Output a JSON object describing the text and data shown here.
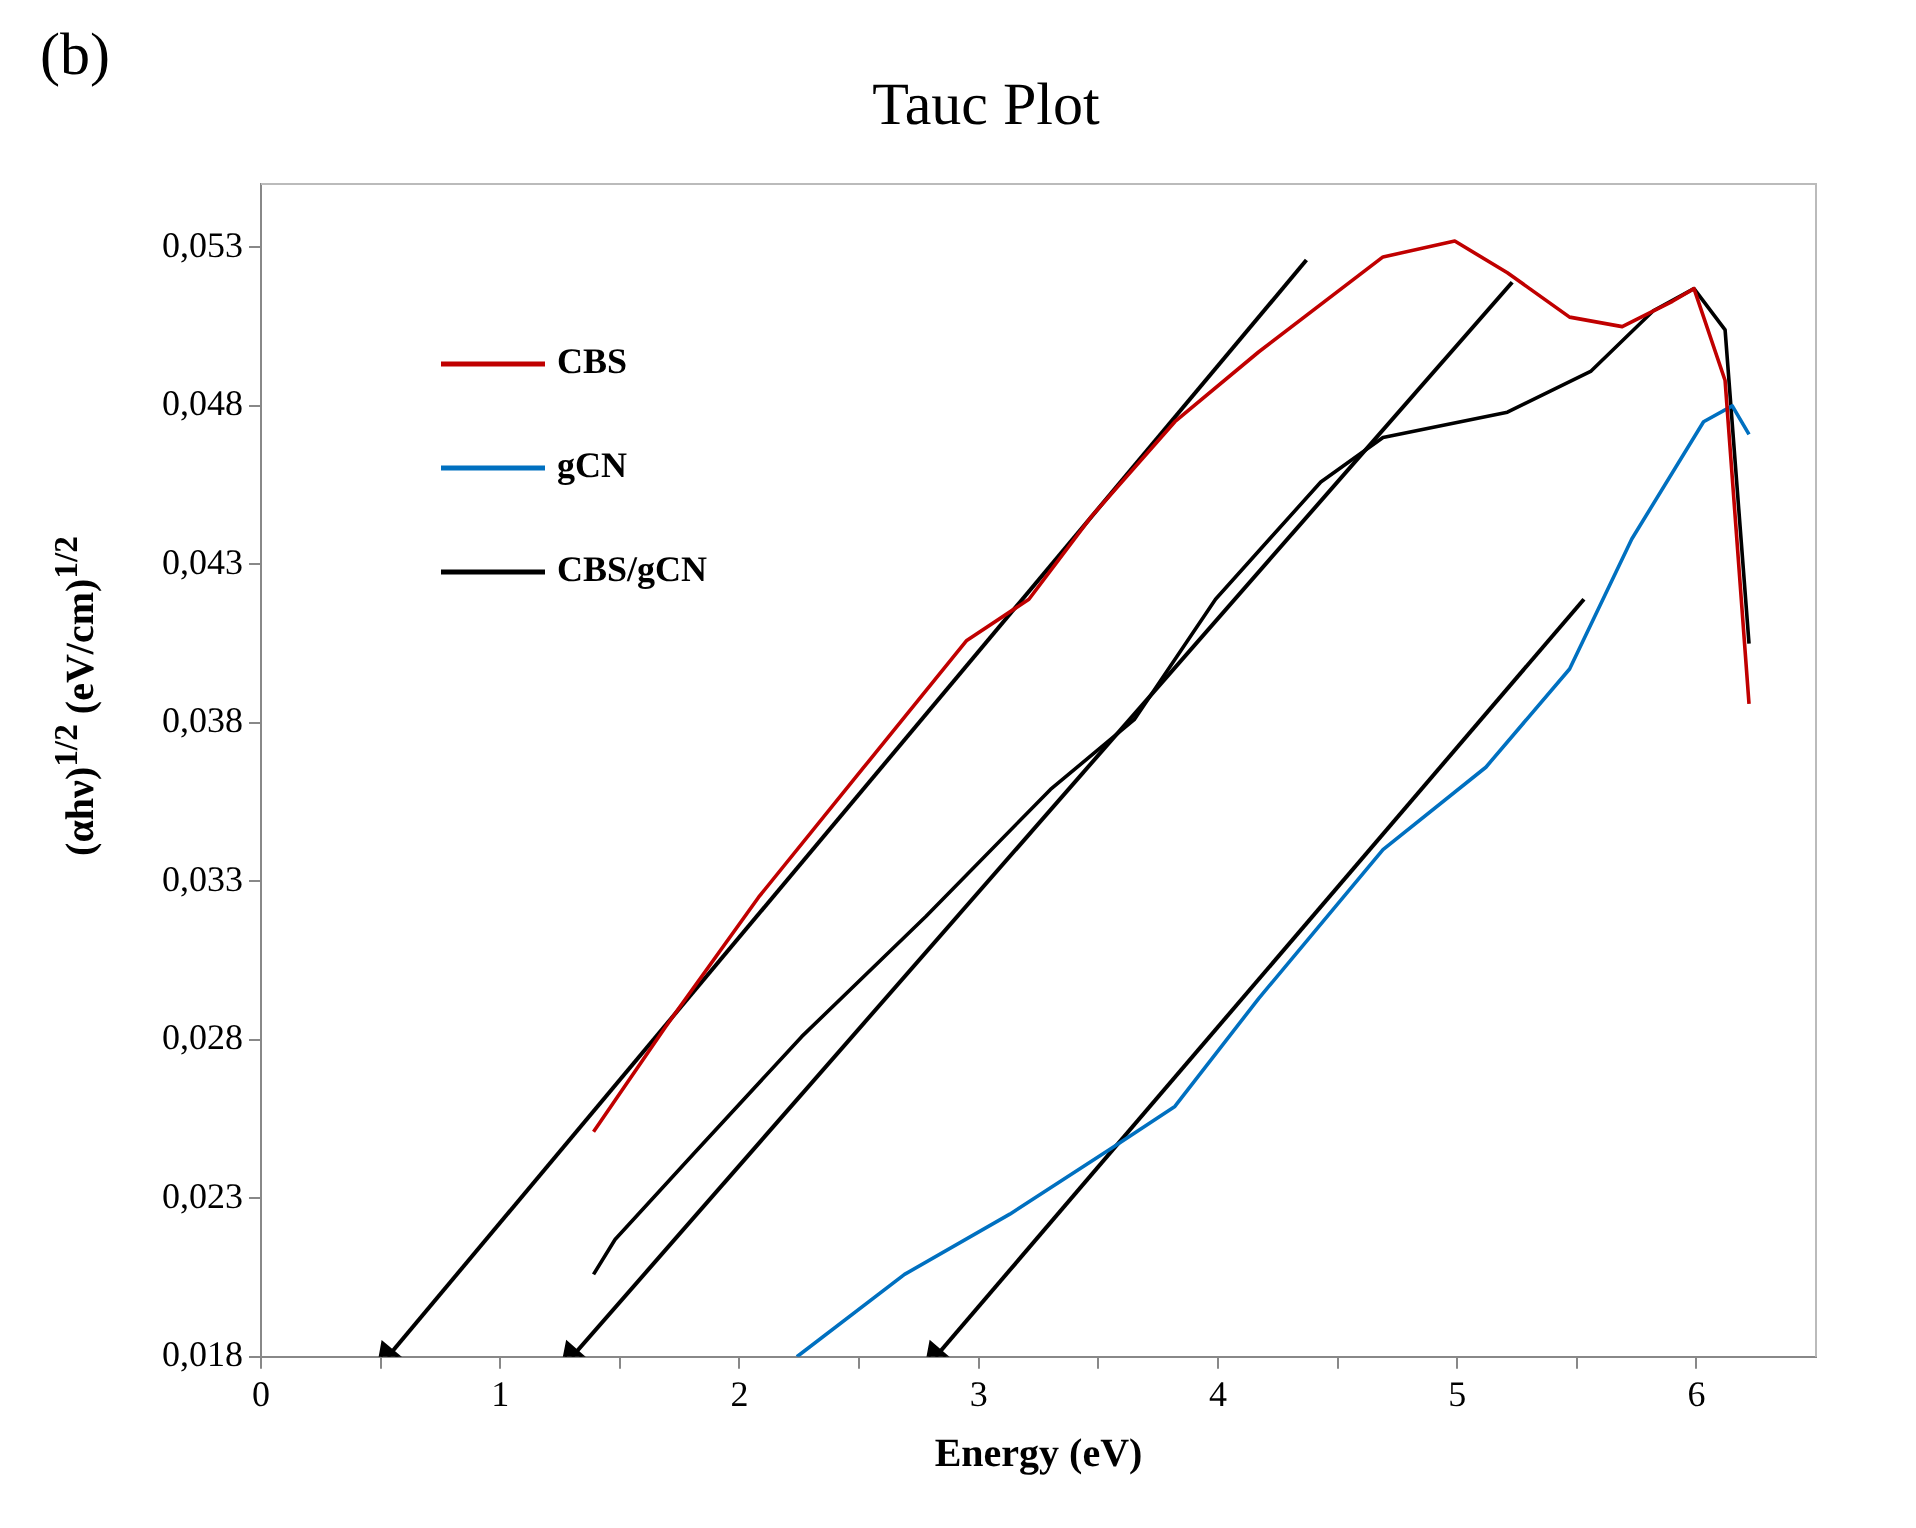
{
  "chart_data": {
    "type": "line",
    "title": "Tauc Plot",
    "xlabel": "Energy (eV)",
    "ylabel": "(αhν)$^{1/2}$  (eV/cm)$^{1/2}$",
    "annotations": [
      "(b)"
    ],
    "xlim": [
      0,
      6.5
    ],
    "ylim": [
      0.018,
      0.055
    ],
    "xticks": [
      0,
      {
        "value": 0.5,
        "label": null
      },
      1,
      {
        "value": 1.5,
        "label": null
      },
      2,
      {
        "value": 2.5,
        "label": null
      },
      3,
      {
        "value": 3.5,
        "label": null
      },
      4,
      {
        "value": 4.5,
        "label": null
      },
      5,
      {
        "value": 5.5,
        "label": null
      },
      6
    ],
    "yticks": [
      {
        "value": 0.018,
        "label": "0,018"
      },
      {
        "value": 0.023,
        "label": "0,023"
      },
      {
        "value": 0.028,
        "label": "0,028"
      },
      {
        "value": 0.033,
        "label": "0,033"
      },
      {
        "value": 0.038,
        "label": "0,038"
      },
      {
        "value": 0.043,
        "label": "0,043"
      },
      {
        "value": 0.048,
        "label": "0,048"
      },
      {
        "value": 0.053,
        "label": "0,053"
      }
    ],
    "grid": false,
    "legend": "top left",
    "marker": "none",
    "line_style": "solid",
    "series": [
      {
        "name": "CBS",
        "color": "#c00000",
        "x": [
          1.39,
          1.69,
          2.08,
          2.52,
          2.95,
          3.21,
          3.47,
          3.82,
          4.17,
          4.69,
          4.99,
          5.21,
          5.47,
          5.69,
          5.9,
          5.99,
          6.12,
          6.22
        ],
        "values": [
          0.0251,
          0.0284,
          0.0325,
          0.0366,
          0.0406,
          0.0419,
          0.0445,
          0.0475,
          0.0497,
          0.0527,
          0.0532,
          0.0522,
          0.0508,
          0.0505,
          0.0513,
          0.0517,
          0.0488,
          0.0386
        ]
      },
      {
        "name": "gCN",
        "color": "#0070c0",
        "x": [
          2.24,
          2.69,
          3.13,
          3.56,
          3.82,
          4.17,
          4.69,
          5.12,
          5.47,
          5.73,
          6.03,
          6.15,
          6.22
        ],
        "values": [
          0.018,
          0.0206,
          0.0225,
          0.0246,
          0.0259,
          0.0293,
          0.034,
          0.0366,
          0.0397,
          0.0438,
          0.0475,
          0.048,
          0.0471
        ]
      },
      {
        "name": "CBS/gCN",
        "color": "#000000",
        "x": [
          1.39,
          1.48,
          1.82,
          2.26,
          2.78,
          3.3,
          3.65,
          3.99,
          4.43,
          4.69,
          5.21,
          5.56,
          5.82,
          5.99,
          6.12,
          6.22
        ],
        "values": [
          0.0206,
          0.0217,
          0.0245,
          0.0281,
          0.0319,
          0.0359,
          0.0381,
          0.0419,
          0.0456,
          0.047,
          0.0478,
          0.0491,
          0.051,
          0.0517,
          0.0504,
          0.0405
        ]
      },
      {
        "type": "line",
        "color": "#000000",
        "marker": "triangle",
        "x": [
          0.53,
          4.37
        ],
        "values": [
          0.018,
          0.0526
        ]
      },
      {
        "type": "line",
        "color": "#000000",
        "marker": "triangle",
        "x": [
          1.3,
          5.23
        ],
        "values": [
          0.018,
          0.0519
        ]
      },
      {
        "type": "line",
        "color": "#000000",
        "marker": "triangle",
        "x": [
          2.82,
          5.53
        ],
        "values": [
          0.018,
          0.0419
        ]
      }
    ]
  }
}
